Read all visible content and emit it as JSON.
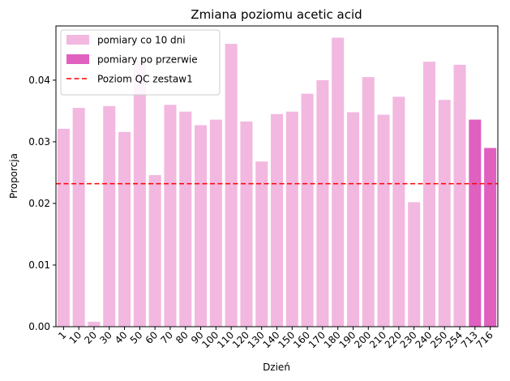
{
  "chart_data": {
    "type": "bar",
    "title": "Zmiana poziomu acetic acid",
    "xlabel": "Dzień",
    "ylabel": "Proporcja",
    "ylim": [
      0,
      0.0488
    ],
    "yticks": [
      "0.00",
      "0.01",
      "0.02",
      "0.03",
      "0.04"
    ],
    "categories": [
      "1",
      "10",
      "20",
      "30",
      "40",
      "50",
      "60",
      "70",
      "80",
      "90",
      "100",
      "110",
      "120",
      "130",
      "140",
      "150",
      "160",
      "170",
      "180",
      "190",
      "200",
      "210",
      "220",
      "230",
      "240",
      "250",
      "254",
      "713",
      "716"
    ],
    "values": [
      0.0321,
      0.0355,
      0.0008,
      0.0358,
      0.0316,
      0.043,
      0.0246,
      0.036,
      0.0349,
      0.0327,
      0.0336,
      0.0459,
      0.0333,
      0.0268,
      0.0345,
      0.0349,
      0.0378,
      0.04,
      0.0469,
      0.0348,
      0.0405,
      0.0344,
      0.0373,
      0.0202,
      0.043,
      0.0368,
      0.0425,
      0.0336,
      0.029
    ],
    "groups": [
      "regular",
      "regular",
      "regular",
      "regular",
      "regular",
      "regular",
      "regular",
      "regular",
      "regular",
      "regular",
      "regular",
      "regular",
      "regular",
      "regular",
      "regular",
      "regular",
      "regular",
      "regular",
      "regular",
      "regular",
      "regular",
      "regular",
      "regular",
      "regular",
      "regular",
      "regular",
      "regular",
      "break",
      "break"
    ],
    "series": [
      {
        "name": "pomiary co 10 dni",
        "key": "regular",
        "color": "#f2b8e0"
      },
      {
        "name": "pomiary po przerwie",
        "key": "break",
        "color": "#e060c0"
      }
    ],
    "reference_line": {
      "name": "Poziom QC zestaw1",
      "value": 0.0232,
      "color": "#ff0000",
      "style": "dashed"
    },
    "legend_position": "top-left",
    "grid": false
  }
}
